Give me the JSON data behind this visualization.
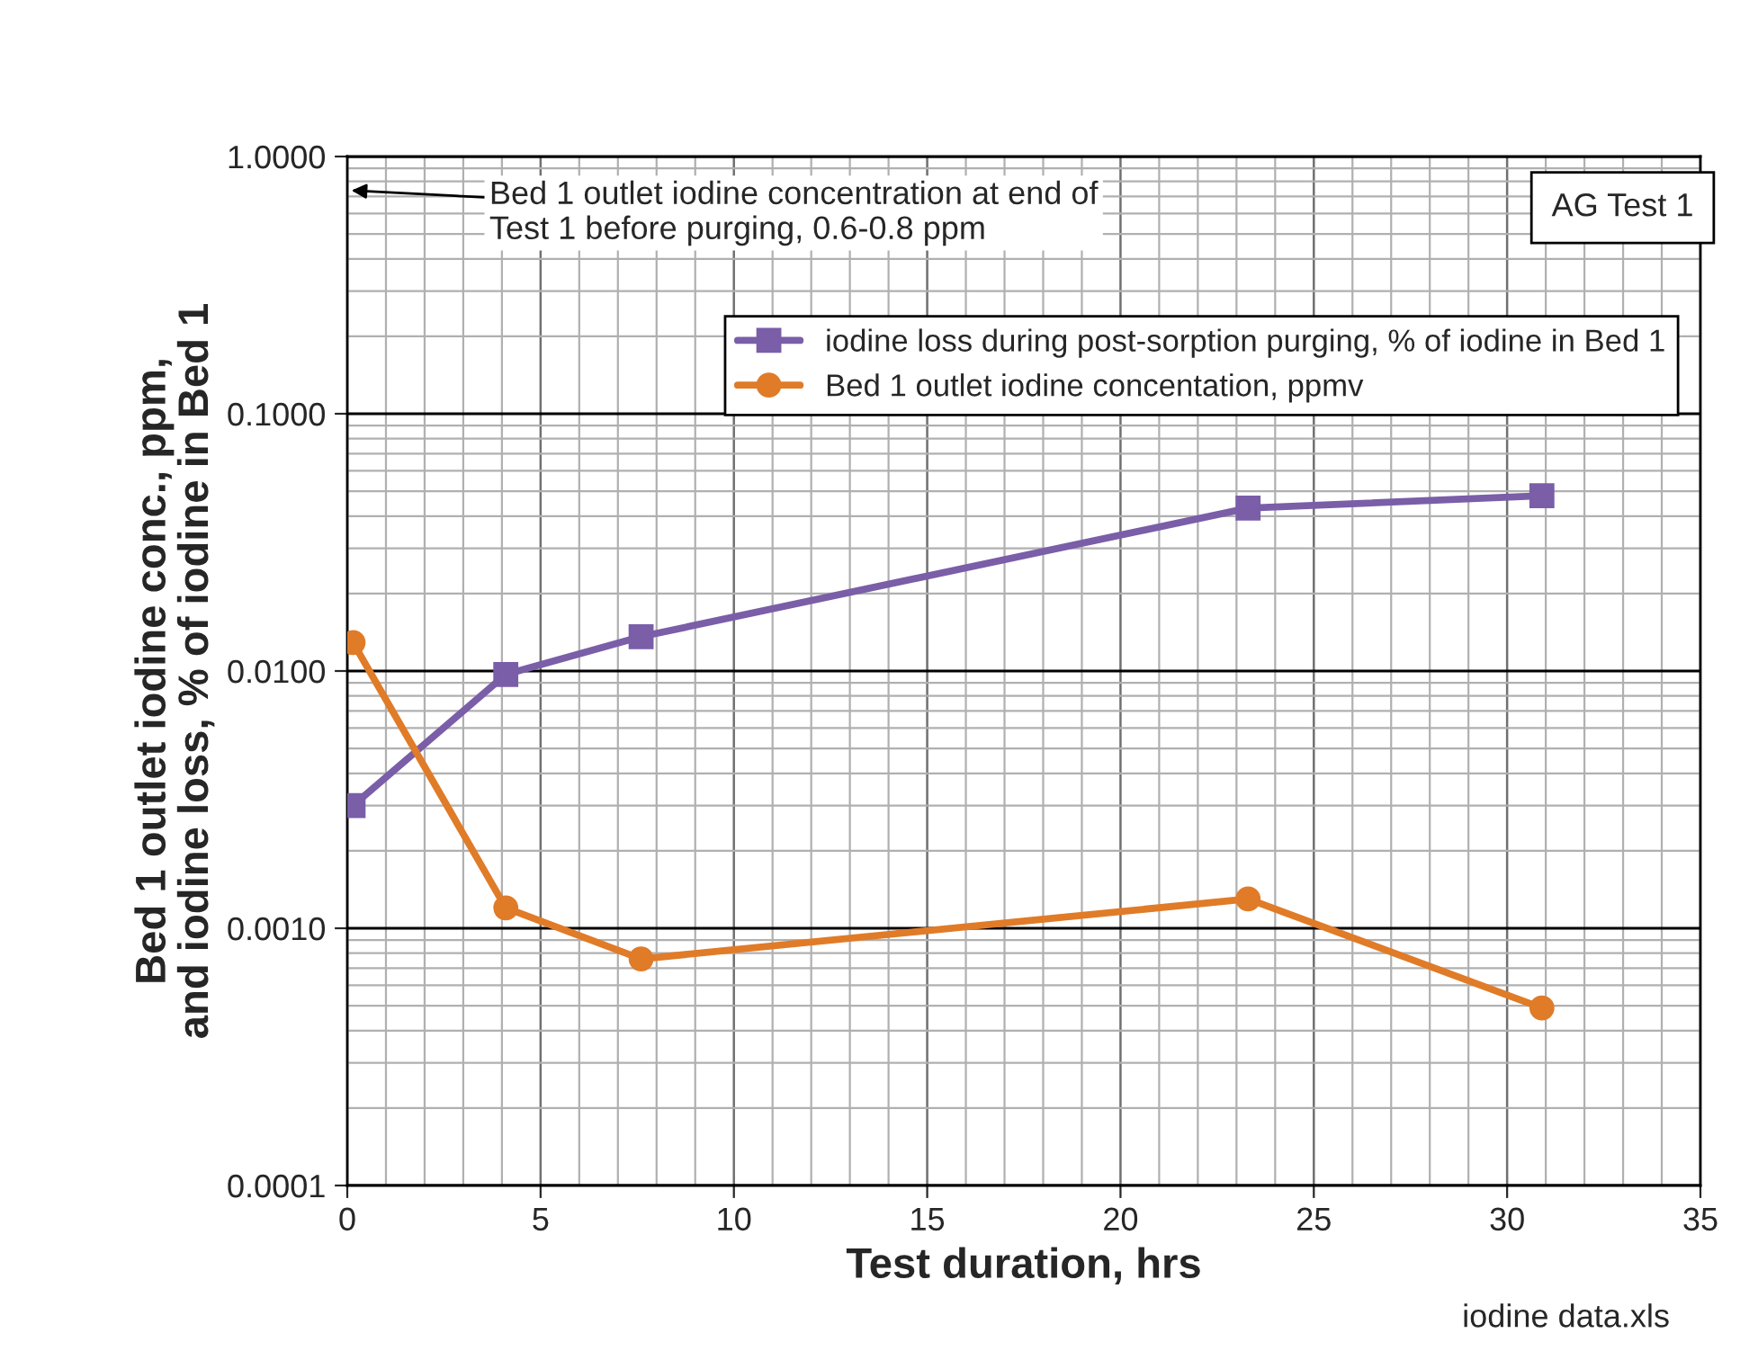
{
  "chart_data": {
    "type": "line",
    "xlabel": "Test duration, hrs",
    "ylabel": "Bed 1 outlet iodine conc., ppm,\nand iodine loss, % of iodine in Bed 1",
    "xlim": [
      0,
      35
    ],
    "xticks": [
      0,
      5,
      10,
      15,
      20,
      25,
      30,
      35
    ],
    "log": true,
    "ylim": [
      0.0001,
      1
    ],
    "yticks": [
      {
        "value": 0.0001,
        "label": "0.0001"
      },
      {
        "value": 0.001,
        "label": "0.0010"
      },
      {
        "value": 0.01,
        "label": "0.0100"
      },
      {
        "value": 0.1,
        "label": "0.1000"
      },
      {
        "value": 1,
        "label": "1.0000"
      }
    ],
    "grid": true,
    "legend": "top right",
    "series": [
      {
        "name": "iodine loss during post-sorption purging, % of iodine in Bed 1",
        "color": "#7a5ea8",
        "marker": "square",
        "x": [
          0.15,
          4.1,
          7.6,
          23.3,
          30.9
        ],
        "values": [
          0.003,
          0.0097,
          0.0136,
          0.043,
          0.048
        ]
      },
      {
        "name": "Bed 1 outlet iodine concentation, ppmv",
        "color": "#e07b28",
        "marker": "circle",
        "x": [
          0.15,
          4.1,
          7.6,
          23.3,
          30.9
        ],
        "values": [
          0.0129,
          0.0012,
          0.00076,
          0.0013,
          0.00049
        ]
      }
    ],
    "annotations": [
      "Bed 1 outlet iodine concentration at end of\nTest 1 before purging, 0.6-0.8 ppm",
      "AG Test 1",
      "iodine data.xls"
    ]
  }
}
